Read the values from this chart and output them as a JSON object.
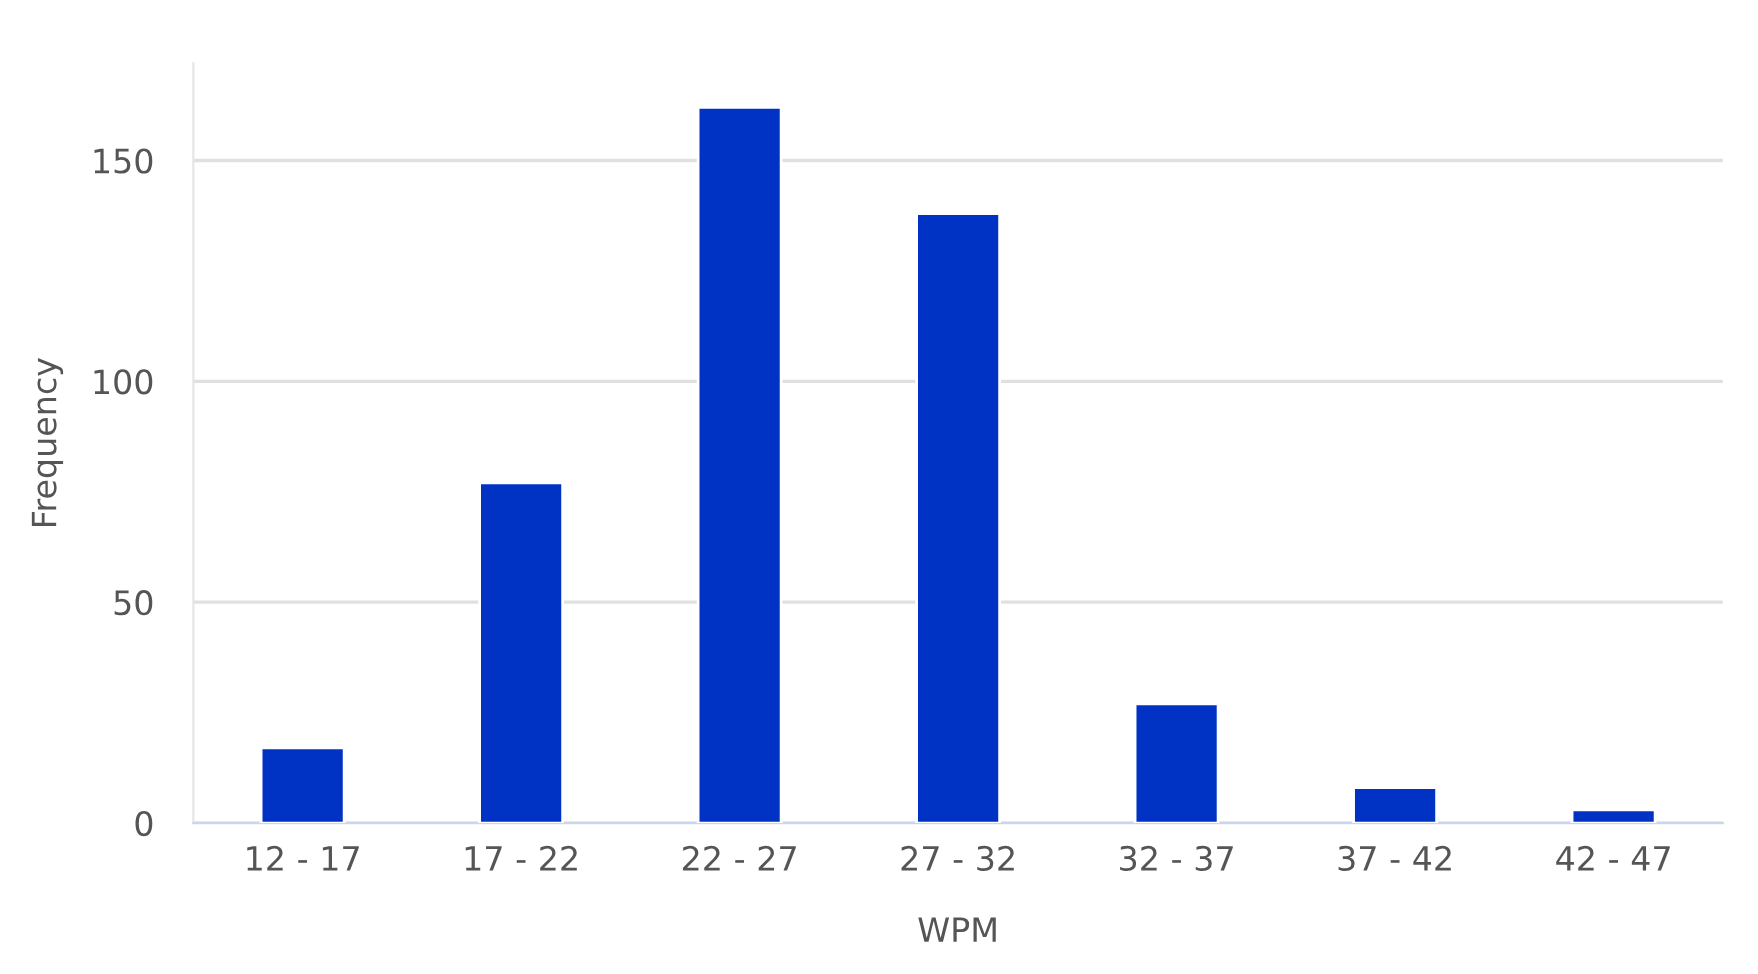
{
  "chart_data": {
    "type": "bar",
    "xlabel": "WPM",
    "ylabel": "Frequency",
    "categories": [
      "12 - 17",
      "17 - 22",
      "22 - 27",
      "27 - 32",
      "32 - 37",
      "37 - 42",
      "42 - 47"
    ],
    "values": [
      17,
      77,
      162,
      138,
      27,
      8,
      3
    ],
    "color": "#0033c4",
    "ylim": [
      0,
      172
    ],
    "yticks": [
      0,
      50,
      100,
      150
    ],
    "grid": "y",
    "legend": false
  }
}
